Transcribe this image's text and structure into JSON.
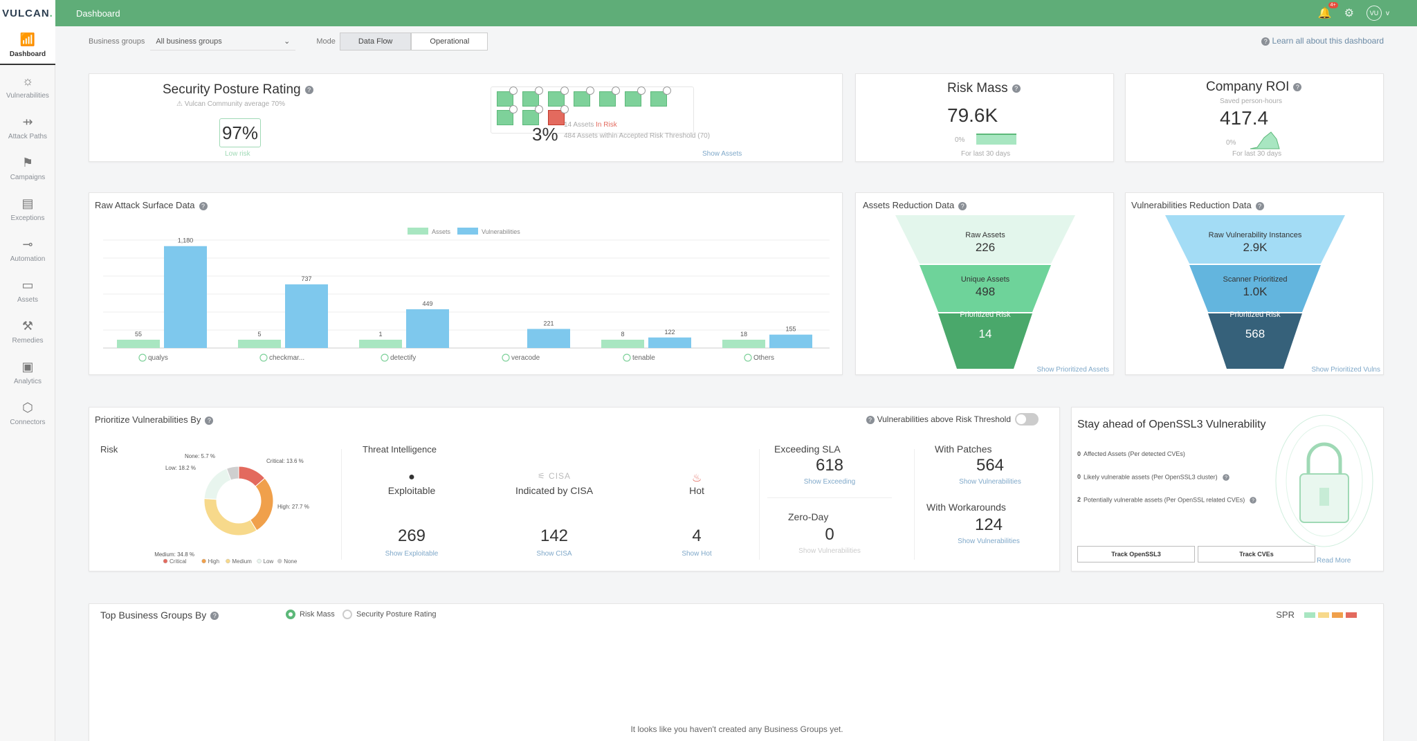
{
  "app": {
    "logo_main": "VULCAN",
    "logo_dot": "."
  },
  "topbar": {
    "title": "Dashboard",
    "notif_count": "4+",
    "avatar": "VU",
    "avatar_suffix": "v"
  },
  "sidebar": {
    "items": [
      {
        "label": "Dashboard",
        "icon": "dashboard-icon",
        "glyph": "📶"
      },
      {
        "label": "Vulnerabilities",
        "icon": "bug-icon",
        "glyph": "☼"
      },
      {
        "label": "Attack Paths",
        "icon": "attack-paths-icon",
        "glyph": "⇸"
      },
      {
        "label": "Campaigns",
        "icon": "flag-icon",
        "glyph": "⚑"
      },
      {
        "label": "Exceptions",
        "icon": "clipboard-icon",
        "glyph": "▤"
      },
      {
        "label": "Automation",
        "icon": "automation-icon",
        "glyph": "⊸"
      },
      {
        "label": "Assets",
        "icon": "monitor-icon",
        "glyph": "▭"
      },
      {
        "label": "Remedies",
        "icon": "wand-icon",
        "glyph": "⚒"
      },
      {
        "label": "Analytics",
        "icon": "analytics-icon",
        "glyph": "▣"
      },
      {
        "label": "Connectors",
        "icon": "plug-icon",
        "glyph": "⬡"
      }
    ]
  },
  "filters": {
    "bg_label": "Business groups",
    "bg_value": "All business groups",
    "mode_label": "Mode",
    "mode_options": [
      "Data Flow",
      "Operational"
    ],
    "learn_link": "Learn all about this dashboard"
  },
  "posture": {
    "title": "Security Posture Rating",
    "community": "Vulcan Community average 70%",
    "rating": "97%",
    "rating_label": "Low risk",
    "risk_pct": "3%",
    "assets_prefix": "14 Assets",
    "assets_in_risk": "In Risk",
    "threshold_text": "484 Assets within Accepted Risk Threshold (70)",
    "show_assets": "Show Assets"
  },
  "risk_mass": {
    "title": "Risk Mass",
    "value": "79.6K",
    "axis_zero": "0%",
    "period": "For last 30 days"
  },
  "roi": {
    "title": "Company ROI",
    "subtitle": "Saved person-hours",
    "value": "417.4",
    "axis_zero": "0%",
    "period": "For last 30 days"
  },
  "raw_attack": {
    "title": "Raw Attack Surface Data",
    "colors": {
      "assets": "#a8e6c1",
      "vulns": "#7ec8ed"
    },
    "chart_data": {
      "type": "bar",
      "categories": [
        "qualys",
        "checkmar...",
        "detectify",
        "veracode",
        "tenable",
        "Others"
      ],
      "series": [
        {
          "name": "Assets",
          "values": [
            55,
            5,
            1,
            0,
            8,
            18
          ],
          "labels": [
            "55",
            "5",
            "1",
            "",
            "8",
            "18"
          ]
        },
        {
          "name": "Vulnerabilities",
          "values": [
            1180,
            737,
            449,
            221,
            122,
            155
          ],
          "labels": [
            "1,180",
            "737",
            "449",
            "221",
            "122",
            "155"
          ]
        }
      ],
      "ylim": [
        0,
        1250
      ],
      "legend": "top-center",
      "grid": true
    }
  },
  "assets_reduction": {
    "title": "Assets Reduction Data",
    "levels": [
      {
        "label": "Raw Assets",
        "value": "226"
      },
      {
        "label": "Unique Assets",
        "value": "498"
      },
      {
        "label": "Prioritized Risk",
        "value": "14"
      }
    ],
    "link": "Show Prioritized Assets"
  },
  "vulns_reduction": {
    "title": "Vulnerabilities Reduction Data",
    "levels": [
      {
        "label": "Raw Vulnerability Instances",
        "value": "2.9K"
      },
      {
        "label": "Scanner Prioritized",
        "value": "1.0K"
      },
      {
        "label": "Prioritized Risk",
        "value": "568"
      }
    ],
    "link": "Show Prioritized Vulns"
  },
  "prioritize": {
    "title": "Prioritize Vulnerabilities By",
    "toggle_label": "Vulnerabilities above Risk Threshold",
    "risk": {
      "title": "Risk",
      "chart_data": {
        "type": "pie",
        "slices": [
          {
            "name": "Critical",
            "value": 13.6,
            "label": "Critical: 13.6 %",
            "color": "#e36a5e"
          },
          {
            "name": "High",
            "value": 27.7,
            "label": "High: 27.7 %",
            "color": "#f0a04b"
          },
          {
            "name": "Medium",
            "value": 34.8,
            "label": "Medium: 34.8 %",
            "color": "#f7d98b"
          },
          {
            "name": "Low",
            "value": 18.2,
            "label": "Low: 18.2 %",
            "color": "#e8f5ee"
          },
          {
            "name": "None",
            "value": 5.7,
            "label": "None: 5.7 %",
            "color": "#cfcfcf"
          }
        ],
        "legend": "bottom"
      }
    },
    "threat": {
      "title": "Threat Intelligence",
      "items": [
        {
          "label": "Exploitable",
          "value": "269",
          "link": "Show Exploitable",
          "icon": "bomb-icon"
        },
        {
          "label": "Indicated by CISA",
          "value": "142",
          "link": "Show CISA",
          "icon": "cisa-logo",
          "logo": "CISA"
        },
        {
          "label": "Hot",
          "value": "4",
          "link": "Show Hot",
          "icon": "fire-icon"
        }
      ]
    },
    "sla": {
      "label": "Exceeding SLA",
      "value": "618",
      "link": "Show Exceeding"
    },
    "zero_day": {
      "label": "Zero-Day",
      "value": "0",
      "link": "Show Vulnerabilities"
    },
    "patches": {
      "label": "With Patches",
      "value": "564",
      "link": "Show Vulnerabilities"
    },
    "workarounds": {
      "label": "With Workarounds",
      "value": "124",
      "link": "Show Vulnerabilities"
    }
  },
  "openssl": {
    "title": "Stay ahead of OpenSSL3 Vulnerability",
    "lines": [
      {
        "count": "0",
        "text": "Affected Assets (Per detected CVEs)"
      },
      {
        "count": "0",
        "text": "Likely vulnerable assets (Per OpenSSL3 cluster)"
      },
      {
        "count": "2",
        "text": "Potentially vulnerable assets (Per OpenSSL related CVEs)"
      }
    ],
    "btn_track_openssl": "Track OpenSSL3",
    "btn_track_cves": "Track CVEs",
    "read_more": "Read More"
  },
  "top_groups": {
    "title": "Top Business Groups By",
    "options": [
      "Risk Mass",
      "Security Posture Rating"
    ],
    "spr_label": "SPR",
    "spr_colors": [
      "#a8e6c1",
      "#f7d98b",
      "#f0a04b",
      "#e36a5e"
    ],
    "empty_text": "It looks like you haven't created any Business Groups yet."
  }
}
